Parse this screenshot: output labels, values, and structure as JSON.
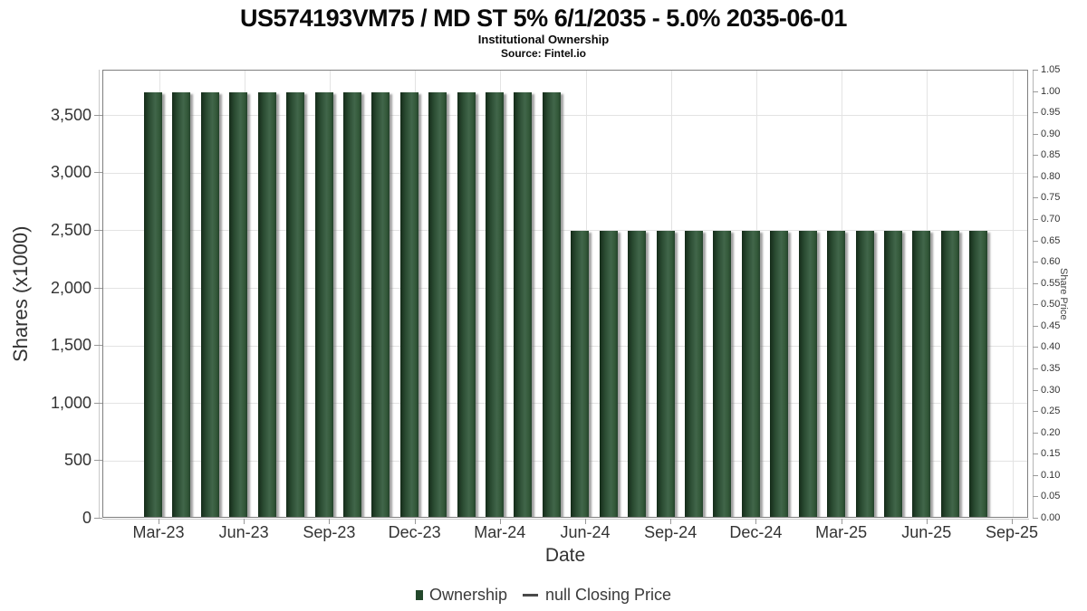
{
  "header": {
    "title": "US574193VM75 / MD ST 5% 6/1/2035 - 5.0% 2035-06-01",
    "subtitle": "Institutional Ownership",
    "source": "Source: Fintel.io"
  },
  "legend": {
    "ownership_label": "Ownership",
    "price_label": "null Closing Price"
  },
  "colors": {
    "bar_dark": "#142b19",
    "bar_mid": "#2b4c32",
    "bar_light": "#41664a",
    "legend_swatch": "#23482b",
    "gridline": "#e3e3e3",
    "plot_border": "#7f7f7f",
    "axis_text": "#333333"
  },
  "chart_data": {
    "type": "bar",
    "title": "US574193VM75 / MD ST 5% 6/1/2035 - 5.0% 2035-06-01",
    "subtitle": "Institutional Ownership",
    "source": "Source: Fintel.io",
    "xlabel": "Date",
    "ylabel_left": "Shares (x1000)",
    "ylabel_right": "Share Price",
    "grid": true,
    "legend_position": "bottom",
    "x_tick_labels": [
      "Mar-23",
      "Jun-23",
      "Sep-23",
      "Dec-23",
      "Mar-24",
      "Jun-24",
      "Sep-24",
      "Dec-24",
      "Mar-25",
      "Jun-25",
      "Sep-25"
    ],
    "y_left_ticks": [
      {
        "value": 0,
        "label": "0"
      },
      {
        "value": 500,
        "label": "500"
      },
      {
        "value": 1000,
        "label": "1,000"
      },
      {
        "value": 1500,
        "label": "1,500"
      },
      {
        "value": 2000,
        "label": "2,000"
      },
      {
        "value": 2500,
        "label": "2,500"
      },
      {
        "value": 3000,
        "label": "3,000"
      },
      {
        "value": 3500,
        "label": "3,500"
      }
    ],
    "ylim_left": [
      0,
      3890
    ],
    "y_right_min": 0.0,
    "y_right_max": 1.05,
    "y_right_step": 0.05,
    "categories": [
      "Mar-23",
      "Apr-23",
      "May-23",
      "Jun-23",
      "Jul-23",
      "Aug-23",
      "Sep-23",
      "Oct-23",
      "Nov-23",
      "Dec-23",
      "Jan-24",
      "Feb-24",
      "Mar-24",
      "Apr-24",
      "May-24",
      "Jun-24",
      "Jul-24",
      "Aug-24",
      "Sep-24",
      "Oct-24",
      "Nov-24",
      "Dec-24",
      "Jan-25",
      "Feb-25",
      "Mar-25",
      "Apr-25",
      "May-25",
      "Jun-25",
      "Jul-25",
      "Aug-25"
    ],
    "series": [
      {
        "name": "Ownership",
        "type": "bar",
        "values": [
          3700,
          3700,
          3700,
          3700,
          3700,
          3700,
          3700,
          3700,
          3700,
          3700,
          3700,
          3700,
          3700,
          3700,
          3700,
          2500,
          2500,
          2500,
          2500,
          2500,
          2500,
          2500,
          2500,
          2500,
          2500,
          2500,
          2500,
          2500,
          2500,
          2500
        ]
      },
      {
        "name": "null Closing Price",
        "type": "line",
        "values": []
      }
    ]
  }
}
